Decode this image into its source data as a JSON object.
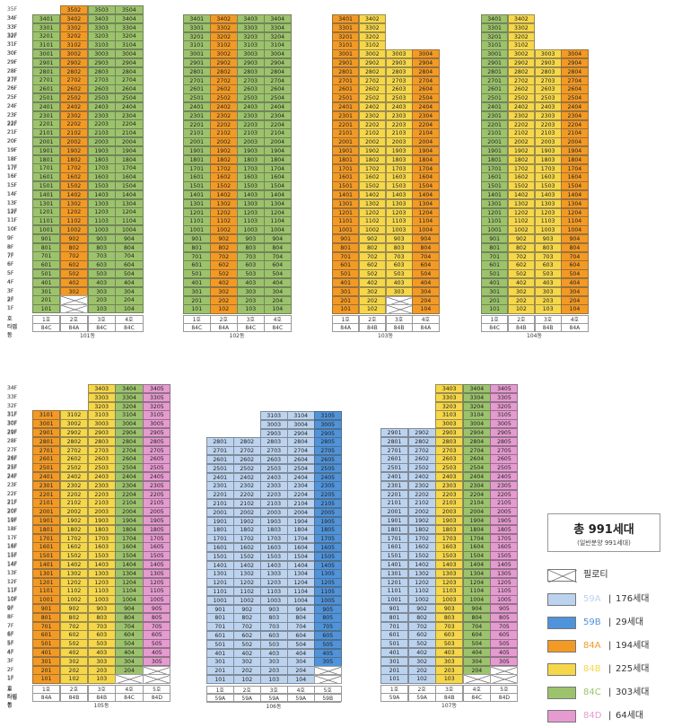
{
  "labels": {
    "ho": "호",
    "type": "타입",
    "dong": "동",
    "pilotis": "필로티"
  },
  "colors": {
    "59A": "#bcd3ef",
    "59B": "#4f93da",
    "84A": "#f39a24",
    "84B": "#f6d74a",
    "84C": "#9cc36b",
    "84D": "#e59ad0"
  },
  "buildings": [
    {
      "name": "101동",
      "top_floor": 35,
      "floors": 35,
      "col_headers": [
        "1호",
        "2호",
        "3호",
        "4호"
      ],
      "types": [
        "84C",
        "84A",
        "84C",
        "84C"
      ],
      "col_max": [
        34,
        35,
        35,
        35
      ],
      "col_min": [
        1,
        3,
        1,
        1
      ],
      "pilotis": [
        1
      ]
    },
    {
      "name": "102동",
      "top_floor": 34,
      "floors": 34,
      "col_headers": [
        "1호",
        "2호",
        "3호",
        "4호"
      ],
      "types": [
        "84C",
        "84A",
        "84C",
        "84C"
      ],
      "col_max": [
        34,
        34,
        34,
        34
      ],
      "col_min": [
        1,
        1,
        1,
        1
      ],
      "pilotis": []
    },
    {
      "name": "103동",
      "top_floor": 34,
      "floors": 34,
      "col_headers": [
        "1호",
        "2호",
        "3호",
        "4호"
      ],
      "types": [
        "84A",
        "84B",
        "84B",
        "84A"
      ],
      "col_max": [
        34,
        34,
        30,
        30
      ],
      "col_min": [
        1,
        1,
        3,
        1
      ],
      "pilotis": [
        2
      ]
    },
    {
      "name": "104동",
      "top_floor": 34,
      "floors": 34,
      "col_headers": [
        "1호",
        "2호",
        "3호",
        "4호"
      ],
      "types": [
        "84C",
        "84B",
        "84B",
        "84A"
      ],
      "col_max": [
        34,
        34,
        30,
        30
      ],
      "col_min": [
        1,
        1,
        1,
        1
      ],
      "pilotis": []
    },
    {
      "name": "105동",
      "top_floor": 34,
      "floors": 34,
      "col_headers": [
        "1호",
        "2호",
        "3호",
        "4호",
        "5호"
      ],
      "types": [
        "84A",
        "84B",
        "84B",
        "84C",
        "84D"
      ],
      "col_max": [
        31,
        31,
        34,
        34,
        34
      ],
      "col_min": [
        1,
        1,
        1,
        2,
        3
      ],
      "pilotis": [
        4
      ]
    },
    {
      "name": "106동",
      "top_floor": 31,
      "floors": 31,
      "col_headers": [
        "1호",
        "2호",
        "3호",
        "4호",
        "5호"
      ],
      "types": [
        "59A",
        "59A",
        "59A",
        "59A",
        "59B"
      ],
      "col_max": [
        28,
        28,
        31,
        31,
        31
      ],
      "col_min": [
        1,
        1,
        1,
        1,
        3
      ],
      "pilotis": [
        4
      ]
    },
    {
      "name": "107동",
      "top_floor": 34,
      "floors": 34,
      "col_headers": [
        "1호",
        "2호",
        "3호",
        "4호",
        "5호"
      ],
      "types": [
        "59A",
        "59A",
        "84B",
        "84C",
        "84D"
      ],
      "col_max": [
        29,
        29,
        34,
        34,
        34
      ],
      "col_min": [
        1,
        1,
        1,
        2,
        3
      ],
      "pilotis": [
        4
      ]
    }
  ],
  "legend": {
    "total_title": "총 991세대",
    "total_sub": "(일반분양 991세대)",
    "pilotis_label": "필로티",
    "items": [
      {
        "type": "59A",
        "count": "176세대"
      },
      {
        "type": "59B",
        "count": "29세대"
      },
      {
        "type": "84A",
        "count": "194세대"
      },
      {
        "type": "84B",
        "count": "225세대"
      },
      {
        "type": "84C",
        "count": "303세대"
      },
      {
        "type": "84D",
        "count": "64세대"
      }
    ]
  }
}
